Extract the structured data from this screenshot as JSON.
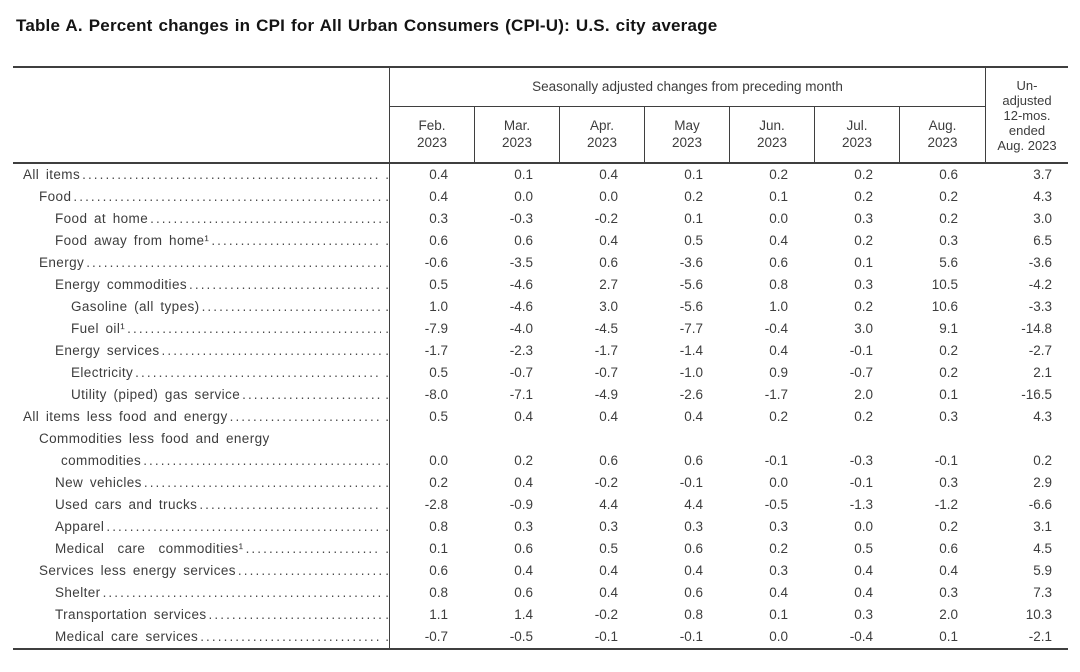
{
  "title": "Table A. Percent changes in CPI for All Urban Consumers (CPI-U): U.S. city average",
  "table": {
    "group_header": "Seasonally adjusted changes from preceding month",
    "unadjusted_header_lines": [
      "Un-",
      "adjusted",
      "12-mos.",
      "ended",
      "Aug. 2023"
    ],
    "month_columns": [
      {
        "month": "Feb.",
        "year": "2023"
      },
      {
        "month": "Mar.",
        "year": "2023"
      },
      {
        "month": "Apr.",
        "year": "2023"
      },
      {
        "month": "May",
        "year": "2023"
      },
      {
        "month": "Jun.",
        "year": "2023"
      },
      {
        "month": "Jul.",
        "year": "2023"
      },
      {
        "month": "Aug.",
        "year": "2023"
      }
    ],
    "rows": [
      {
        "label": "All items",
        "indent": 0,
        "values": [
          "0.4",
          "0.1",
          "0.4",
          "0.1",
          "0.2",
          "0.2",
          "0.6"
        ],
        "unadjusted": "3.7"
      },
      {
        "label": "Food",
        "indent": 1,
        "values": [
          "0.4",
          "0.0",
          "0.0",
          "0.2",
          "0.1",
          "0.2",
          "0.2"
        ],
        "unadjusted": "4.3"
      },
      {
        "label": "Food at home",
        "indent": 2,
        "values": [
          "0.3",
          "-0.3",
          "-0.2",
          "0.1",
          "0.0",
          "0.3",
          "0.2"
        ],
        "unadjusted": "3.0"
      },
      {
        "label": "Food away from home¹",
        "indent": 2,
        "values": [
          "0.6",
          "0.6",
          "0.4",
          "0.5",
          "0.4",
          "0.2",
          "0.3"
        ],
        "unadjusted": "6.5"
      },
      {
        "label": "Energy",
        "indent": 1,
        "values": [
          "-0.6",
          "-3.5",
          "0.6",
          "-3.6",
          "0.6",
          "0.1",
          "5.6"
        ],
        "unadjusted": "-3.6"
      },
      {
        "label": "Energy commodities",
        "indent": 2,
        "values": [
          "0.5",
          "-4.6",
          "2.7",
          "-5.6",
          "0.8",
          "0.3",
          "10.5"
        ],
        "unadjusted": "-4.2"
      },
      {
        "label": "Gasoline (all types)",
        "indent": 3,
        "values": [
          "1.0",
          "-4.6",
          "3.0",
          "-5.6",
          "1.0",
          "0.2",
          "10.6"
        ],
        "unadjusted": "-3.3"
      },
      {
        "label": "Fuel oil¹",
        "indent": 3,
        "values": [
          "-7.9",
          "-4.0",
          "-4.5",
          "-7.7",
          "-0.4",
          "3.0",
          "9.1"
        ],
        "unadjusted": "-14.8"
      },
      {
        "label": "Energy services",
        "indent": 2,
        "values": [
          "-1.7",
          "-2.3",
          "-1.7",
          "-1.4",
          "0.4",
          "-0.1",
          "0.2"
        ],
        "unadjusted": "-2.7"
      },
      {
        "label": "Electricity",
        "indent": 3,
        "values": [
          "0.5",
          "-0.7",
          "-0.7",
          "-1.0",
          "0.9",
          "-0.7",
          "0.2"
        ],
        "unadjusted": "2.1"
      },
      {
        "label": "Utility (piped) gas service",
        "indent": 3,
        "values": [
          "-8.0",
          "-7.1",
          "-4.9",
          "-2.6",
          "-1.7",
          "2.0",
          "0.1"
        ],
        "unadjusted": "-16.5"
      },
      {
        "label": "All items less food and energy",
        "indent": 0,
        "values": [
          "0.5",
          "0.4",
          "0.4",
          "0.4",
          "0.2",
          "0.2",
          "0.3"
        ],
        "unadjusted": "4.3"
      },
      {
        "label": "Commodities less food and energy",
        "label_line2": "commodities",
        "indent": 1,
        "double": true,
        "values": [
          "0.0",
          "0.2",
          "0.6",
          "0.6",
          "-0.1",
          "-0.3",
          "-0.1"
        ],
        "unadjusted": "0.2"
      },
      {
        "label": "New vehicles",
        "indent": 2,
        "values": [
          "0.2",
          "0.4",
          "-0.2",
          "-0.1",
          "0.0",
          "-0.1",
          "0.3"
        ],
        "unadjusted": "2.9"
      },
      {
        "label": "Used cars and trucks",
        "indent": 2,
        "values": [
          "-2.8",
          "-0.9",
          "4.4",
          "4.4",
          "-0.5",
          "-1.3",
          "-1.2"
        ],
        "unadjusted": "-6.6"
      },
      {
        "label": "Apparel",
        "indent": 2,
        "values": [
          "0.8",
          "0.3",
          "0.3",
          "0.3",
          "0.3",
          "0.0",
          "0.2"
        ],
        "unadjusted": "3.1"
      },
      {
        "label": "Medical care commodities¹",
        "indent": 2,
        "spread": true,
        "values": [
          "0.1",
          "0.6",
          "0.5",
          "0.6",
          "0.2",
          "0.5",
          "0.6"
        ],
        "unadjusted": "4.5"
      },
      {
        "label": "Services less energy services",
        "indent": 1,
        "values": [
          "0.6",
          "0.4",
          "0.4",
          "0.4",
          "0.3",
          "0.4",
          "0.4"
        ],
        "unadjusted": "5.9"
      },
      {
        "label": "Shelter",
        "indent": 2,
        "values": [
          "0.8",
          "0.6",
          "0.4",
          "0.6",
          "0.4",
          "0.4",
          "0.3"
        ],
        "unadjusted": "7.3"
      },
      {
        "label": "Transportation services",
        "indent": 2,
        "values": [
          "1.1",
          "1.4",
          "-0.2",
          "0.8",
          "0.1",
          "0.3",
          "2.0"
        ],
        "unadjusted": "10.3"
      },
      {
        "label": "Medical care services",
        "indent": 2,
        "values": [
          "-0.7",
          "-0.5",
          "-0.1",
          "-0.1",
          "0.0",
          "-0.4",
          "0.1"
        ],
        "unadjusted": "-2.1"
      }
    ]
  }
}
